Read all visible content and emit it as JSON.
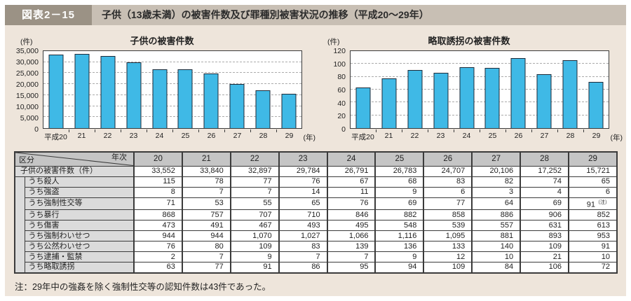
{
  "page": {
    "figure_label": "図表2－15",
    "title": "子供（13歳未満）の被害件数及び罪種別被害状況の推移（平成20～29年）",
    "note": "注：29年中の強姦を除く強制性交等の認知件数は43件であった。"
  },
  "colors": {
    "page_bg": "#EEE5DB",
    "header_label_bg": "#9B9285",
    "header_title_bg": "#C8BFB4",
    "bar_fill": "#3FB9E6",
    "bar_border": "#1E2A38",
    "table_header_bg": "#C5C5C5",
    "table_label_bg": "#DBDBDB"
  },
  "chart_data": [
    {
      "type": "bar",
      "title": "子供の被害件数",
      "unit_label": "(件)",
      "x_unit_label": "(年)",
      "categories": [
        "平成20",
        "21",
        "22",
        "23",
        "24",
        "25",
        "26",
        "27",
        "28",
        "29"
      ],
      "values": [
        33552,
        33840,
        32897,
        29784,
        26791,
        26783,
        24707,
        20106,
        17252,
        15721
      ],
      "ylim": [
        0,
        35000
      ],
      "ytick_step": 5000,
      "yticks": [
        "35,000",
        "30,000",
        "25,000",
        "20,000",
        "15,000",
        "10,000",
        "5,000",
        "0"
      ],
      "grid": "dashed-horizontal",
      "legend": "none"
    },
    {
      "type": "bar",
      "title": "略取誘拐の被害件数",
      "unit_label": "(件)",
      "x_unit_label": "(年)",
      "categories": [
        "平成20",
        "21",
        "22",
        "23",
        "24",
        "25",
        "26",
        "27",
        "28",
        "29"
      ],
      "values": [
        63,
        77,
        91,
        86,
        95,
        94,
        109,
        84,
        106,
        72
      ],
      "ylim": [
        0,
        120
      ],
      "ytick_step": 20,
      "yticks": [
        "120",
        "100",
        "80",
        "60",
        "40",
        "20",
        "0"
      ],
      "grid": "dashed-horizontal",
      "legend": "none"
    }
  ],
  "table": {
    "corner_top": "年次",
    "corner_bottom": "区分",
    "year_columns": [
      "20",
      "21",
      "22",
      "23",
      "24",
      "25",
      "26",
      "27",
      "28",
      "29"
    ],
    "rows": [
      {
        "label": "子供の被害件数（件）",
        "indent": false,
        "values": [
          "33,552",
          "33,840",
          "32,897",
          "29,784",
          "26,791",
          "26,783",
          "24,707",
          "20,106",
          "17,252",
          "15,721"
        ]
      },
      {
        "label": "うち殺人",
        "indent": true,
        "values": [
          "115",
          "78",
          "77",
          "76",
          "67",
          "68",
          "83",
          "82",
          "74",
          "65"
        ]
      },
      {
        "label": "うち強盗",
        "indent": true,
        "values": [
          "8",
          "7",
          "7",
          "14",
          "11",
          "9",
          "6",
          "3",
          "4",
          "6"
        ]
      },
      {
        "label": "うち強制性交等",
        "indent": true,
        "values": [
          "71",
          "53",
          "55",
          "65",
          "76",
          "69",
          "77",
          "64",
          "69",
          "91"
        ]
      },
      {
        "label": "うち暴行",
        "indent": true,
        "values": [
          "868",
          "757",
          "707",
          "710",
          "846",
          "882",
          "858",
          "886",
          "906",
          "852"
        ]
      },
      {
        "label": "うち傷害",
        "indent": true,
        "values": [
          "473",
          "491",
          "467",
          "493",
          "495",
          "548",
          "539",
          "557",
          "631",
          "613"
        ]
      },
      {
        "label": "うち強制わいせつ",
        "indent": true,
        "values": [
          "944",
          "944",
          "1,070",
          "1,027",
          "1,066",
          "1,116",
          "1,095",
          "881",
          "893",
          "953"
        ]
      },
      {
        "label": "うち公然わいせつ",
        "indent": true,
        "values": [
          "76",
          "80",
          "109",
          "83",
          "139",
          "136",
          "133",
          "140",
          "109",
          "91"
        ]
      },
      {
        "label": "うち逮捕・監禁",
        "indent": true,
        "values": [
          "2",
          "7",
          "9",
          "7",
          "7",
          "9",
          "12",
          "10",
          "21",
          "10"
        ]
      },
      {
        "label": "うち略取誘拐",
        "indent": true,
        "values": [
          "63",
          "77",
          "91",
          "86",
          "95",
          "94",
          "109",
          "84",
          "106",
          "72"
        ]
      }
    ],
    "note_marker": {
      "row_index": 3,
      "col_index": 9,
      "text": "（注）"
    }
  }
}
